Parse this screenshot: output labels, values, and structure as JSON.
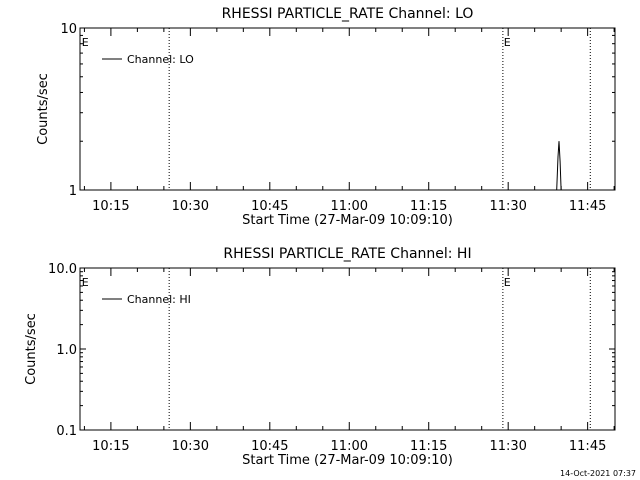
{
  "footer": {
    "timestamp": "14-Oct-2021 07:37"
  },
  "chart_data": [
    {
      "type": "line",
      "title": "RHESSI PARTICLE_RATE Channel: LO",
      "xlabel": "Start Time (27-Mar-09 10:09:10)",
      "ylabel": "Counts/sec",
      "yscale": "log",
      "ylim": [
        1,
        10
      ],
      "yticks": [
        {
          "value": 1,
          "label": "1"
        },
        {
          "value": 10,
          "label": "10"
        }
      ],
      "xlim": [
        "10:09:10",
        "11:50:10"
      ],
      "xticks": [
        {
          "value": "10:15",
          "label": "10:15"
        },
        {
          "value": "10:30",
          "label": "10:30"
        },
        {
          "value": "10:45",
          "label": "10:45"
        },
        {
          "value": "11:00",
          "label": "11:00"
        },
        {
          "value": "11:15",
          "label": "11:15"
        },
        {
          "value": "11:30",
          "label": "11:30"
        },
        {
          "value": "11:45",
          "label": "11:45"
        }
      ],
      "vlines": [
        "10:26:00",
        "11:29:00",
        "11:45:30"
      ],
      "flags": [
        {
          "x": "10:09:30",
          "label": "E"
        },
        {
          "x": "11:29:10",
          "label": "E"
        }
      ],
      "legend": {
        "placement": "top-left",
        "entries": [
          "Channel: LO"
        ]
      },
      "series": [
        {
          "name": "Channel: LO",
          "x": [
            "11:39:10",
            "11:39:24",
            "11:39:36",
            "11:39:48",
            "11:40:00"
          ],
          "y": [
            1,
            1.6,
            2.0,
            1.5,
            1
          ]
        }
      ]
    },
    {
      "type": "line",
      "title": "RHESSI PARTICLE_RATE Channel: HI",
      "xlabel": "Start Time (27-Mar-09 10:09:10)",
      "ylabel": "Counts/sec",
      "yscale": "log",
      "ylim": [
        0.1,
        10
      ],
      "yticks": [
        {
          "value": 0.1,
          "label": "0.1"
        },
        {
          "value": 1,
          "label": "1.0"
        },
        {
          "value": 10,
          "label": "10.0"
        }
      ],
      "xlim": [
        "10:09:10",
        "11:50:10"
      ],
      "xticks": [
        {
          "value": "10:15",
          "label": "10:15"
        },
        {
          "value": "10:30",
          "label": "10:30"
        },
        {
          "value": "10:45",
          "label": "10:45"
        },
        {
          "value": "11:00",
          "label": "11:00"
        },
        {
          "value": "11:15",
          "label": "11:15"
        },
        {
          "value": "11:30",
          "label": "11:30"
        },
        {
          "value": "11:45",
          "label": "11:45"
        }
      ],
      "vlines": [
        "10:26:00",
        "11:29:00",
        "11:45:30"
      ],
      "flags": [
        {
          "x": "10:09:30",
          "label": "E"
        },
        {
          "x": "11:29:10",
          "label": "E"
        }
      ],
      "legend": {
        "placement": "top-left",
        "entries": [
          "Channel: HI"
        ]
      },
      "series": [
        {
          "name": "Channel: HI",
          "x": [],
          "y": []
        }
      ]
    }
  ]
}
